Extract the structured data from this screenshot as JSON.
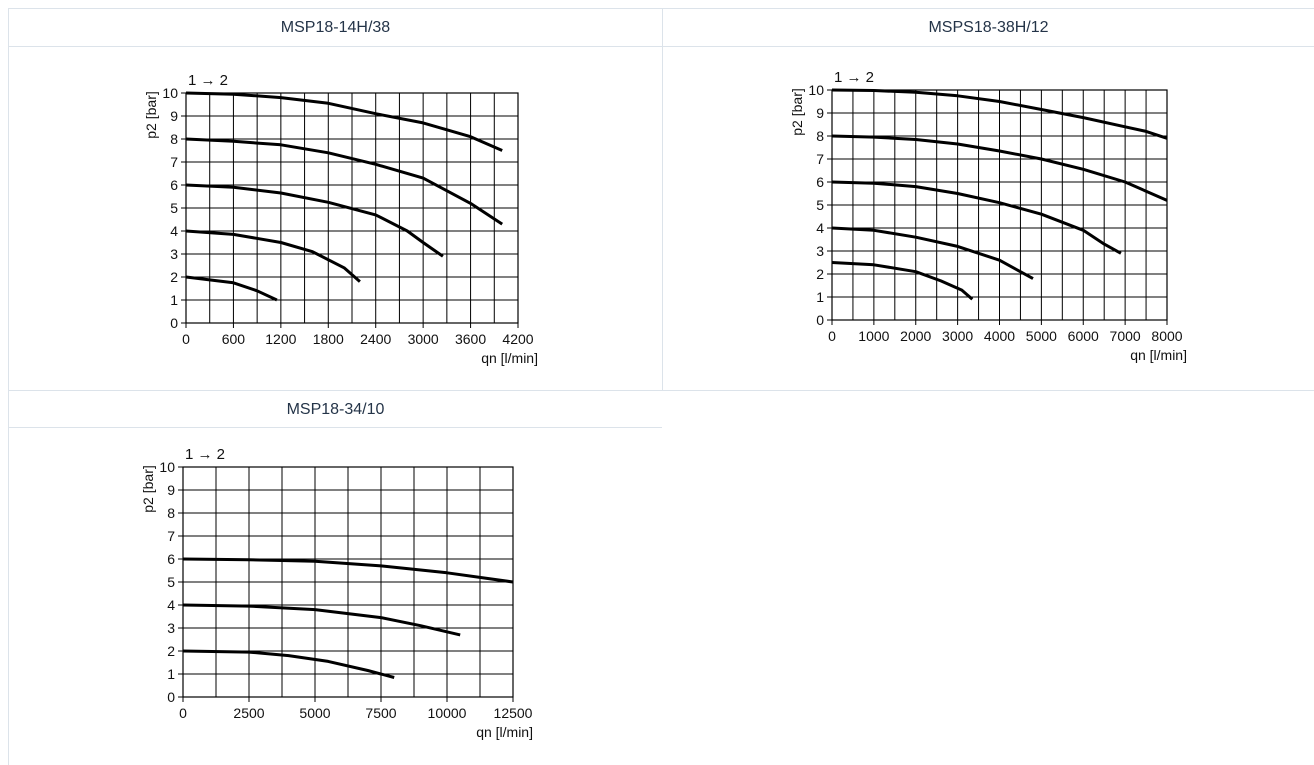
{
  "panels": {
    "p1": {
      "title": "MSP18-14H/38"
    },
    "p2": {
      "title": "MSPS18-38H/12"
    },
    "p3": {
      "title": "MSP18-34/10"
    }
  },
  "chart_data": [
    {
      "type": "line",
      "title": "MSP18-14H/38",
      "annotation": "1 → 2",
      "xlabel": "qn [l/min]",
      "ylabel": "p2 [bar]",
      "xlim": [
        0,
        4200
      ],
      "ylim": [
        0,
        10
      ],
      "xticks": [
        0,
        600,
        1200,
        1800,
        2400,
        3000,
        3600,
        4200
      ],
      "yticks": [
        0,
        1,
        2,
        3,
        4,
        5,
        6,
        7,
        8,
        9,
        10
      ],
      "grid": true,
      "series": [
        {
          "x": [
            0,
            600,
            1200,
            1800,
            2400,
            3000,
            3600,
            4000
          ],
          "y": [
            10,
            9.95,
            9.8,
            9.55,
            9.1,
            8.7,
            8.1,
            7.5
          ]
        },
        {
          "x": [
            0,
            600,
            1200,
            1800,
            2400,
            3000,
            3600,
            4000
          ],
          "y": [
            8,
            7.9,
            7.75,
            7.4,
            6.9,
            6.3,
            5.2,
            4.3
          ]
        },
        {
          "x": [
            0,
            600,
            1200,
            1800,
            2400,
            2800,
            3000,
            3250
          ],
          "y": [
            6,
            5.9,
            5.65,
            5.25,
            4.7,
            4.0,
            3.5,
            2.9
          ]
        },
        {
          "x": [
            0,
            600,
            1200,
            1600,
            2000,
            2200
          ],
          "y": [
            4,
            3.85,
            3.5,
            3.1,
            2.4,
            1.8
          ]
        },
        {
          "x": [
            0,
            600,
            900,
            1150
          ],
          "y": [
            2,
            1.75,
            1.4,
            1.0
          ]
        }
      ]
    },
    {
      "type": "line",
      "title": "MSPS18-38H/12",
      "annotation": "1 → 2",
      "xlabel": "qn [l/min]",
      "ylabel": "p2 [bar]",
      "xlim": [
        0,
        8000
      ],
      "ylim": [
        0,
        10
      ],
      "xticks": [
        0,
        1000,
        2000,
        3000,
        4000,
        5000,
        6000,
        7000,
        8000
      ],
      "yticks": [
        0,
        1,
        2,
        3,
        4,
        5,
        6,
        7,
        8,
        9,
        10
      ],
      "grid": true,
      "series": [
        {
          "x": [
            0,
            1000,
            2000,
            3000,
            4000,
            5000,
            6000,
            7000,
            7500,
            8000
          ],
          "y": [
            10,
            9.98,
            9.9,
            9.75,
            9.5,
            9.15,
            8.8,
            8.4,
            8.2,
            7.9
          ]
        },
        {
          "x": [
            0,
            1000,
            2000,
            3000,
            4000,
            5000,
            6000,
            7000,
            7500,
            8000
          ],
          "y": [
            8,
            7.95,
            7.85,
            7.65,
            7.35,
            7.0,
            6.55,
            6.0,
            5.6,
            5.2
          ]
        },
        {
          "x": [
            0,
            1000,
            2000,
            3000,
            4000,
            5000,
            6000,
            6500,
            6900
          ],
          "y": [
            6,
            5.95,
            5.8,
            5.5,
            5.1,
            4.6,
            3.9,
            3.3,
            2.9
          ]
        },
        {
          "x": [
            0,
            1000,
            2000,
            3000,
            4000,
            4500,
            4800
          ],
          "y": [
            4,
            3.9,
            3.6,
            3.2,
            2.6,
            2.1,
            1.8
          ]
        },
        {
          "x": [
            0,
            1000,
            2000,
            2600,
            3100,
            3350
          ],
          "y": [
            2.5,
            2.4,
            2.1,
            1.7,
            1.3,
            0.9
          ]
        }
      ]
    },
    {
      "type": "line",
      "title": "MSP18-34/10",
      "annotation": "1 → 2",
      "xlabel": "qn [l/min]",
      "ylabel": "p2 [bar]",
      "xlim": [
        0,
        12500
      ],
      "ylim": [
        0,
        10
      ],
      "xticks": [
        0,
        2500,
        5000,
        7500,
        10000,
        12500
      ],
      "yticks": [
        0,
        1,
        2,
        3,
        4,
        5,
        6,
        7,
        8,
        9,
        10
      ],
      "grid": true,
      "series": [
        {
          "x": [
            0,
            2500,
            5000,
            7500,
            10000,
            12500
          ],
          "y": [
            6,
            5.97,
            5.9,
            5.7,
            5.4,
            5.0
          ]
        },
        {
          "x": [
            0,
            2500,
            5000,
            7500,
            9000,
            10500
          ],
          "y": [
            4,
            3.95,
            3.8,
            3.45,
            3.1,
            2.7
          ]
        },
        {
          "x": [
            0,
            2500,
            4000,
            5500,
            7000,
            8000
          ],
          "y": [
            2,
            1.95,
            1.8,
            1.55,
            1.15,
            0.85
          ]
        }
      ]
    }
  ]
}
